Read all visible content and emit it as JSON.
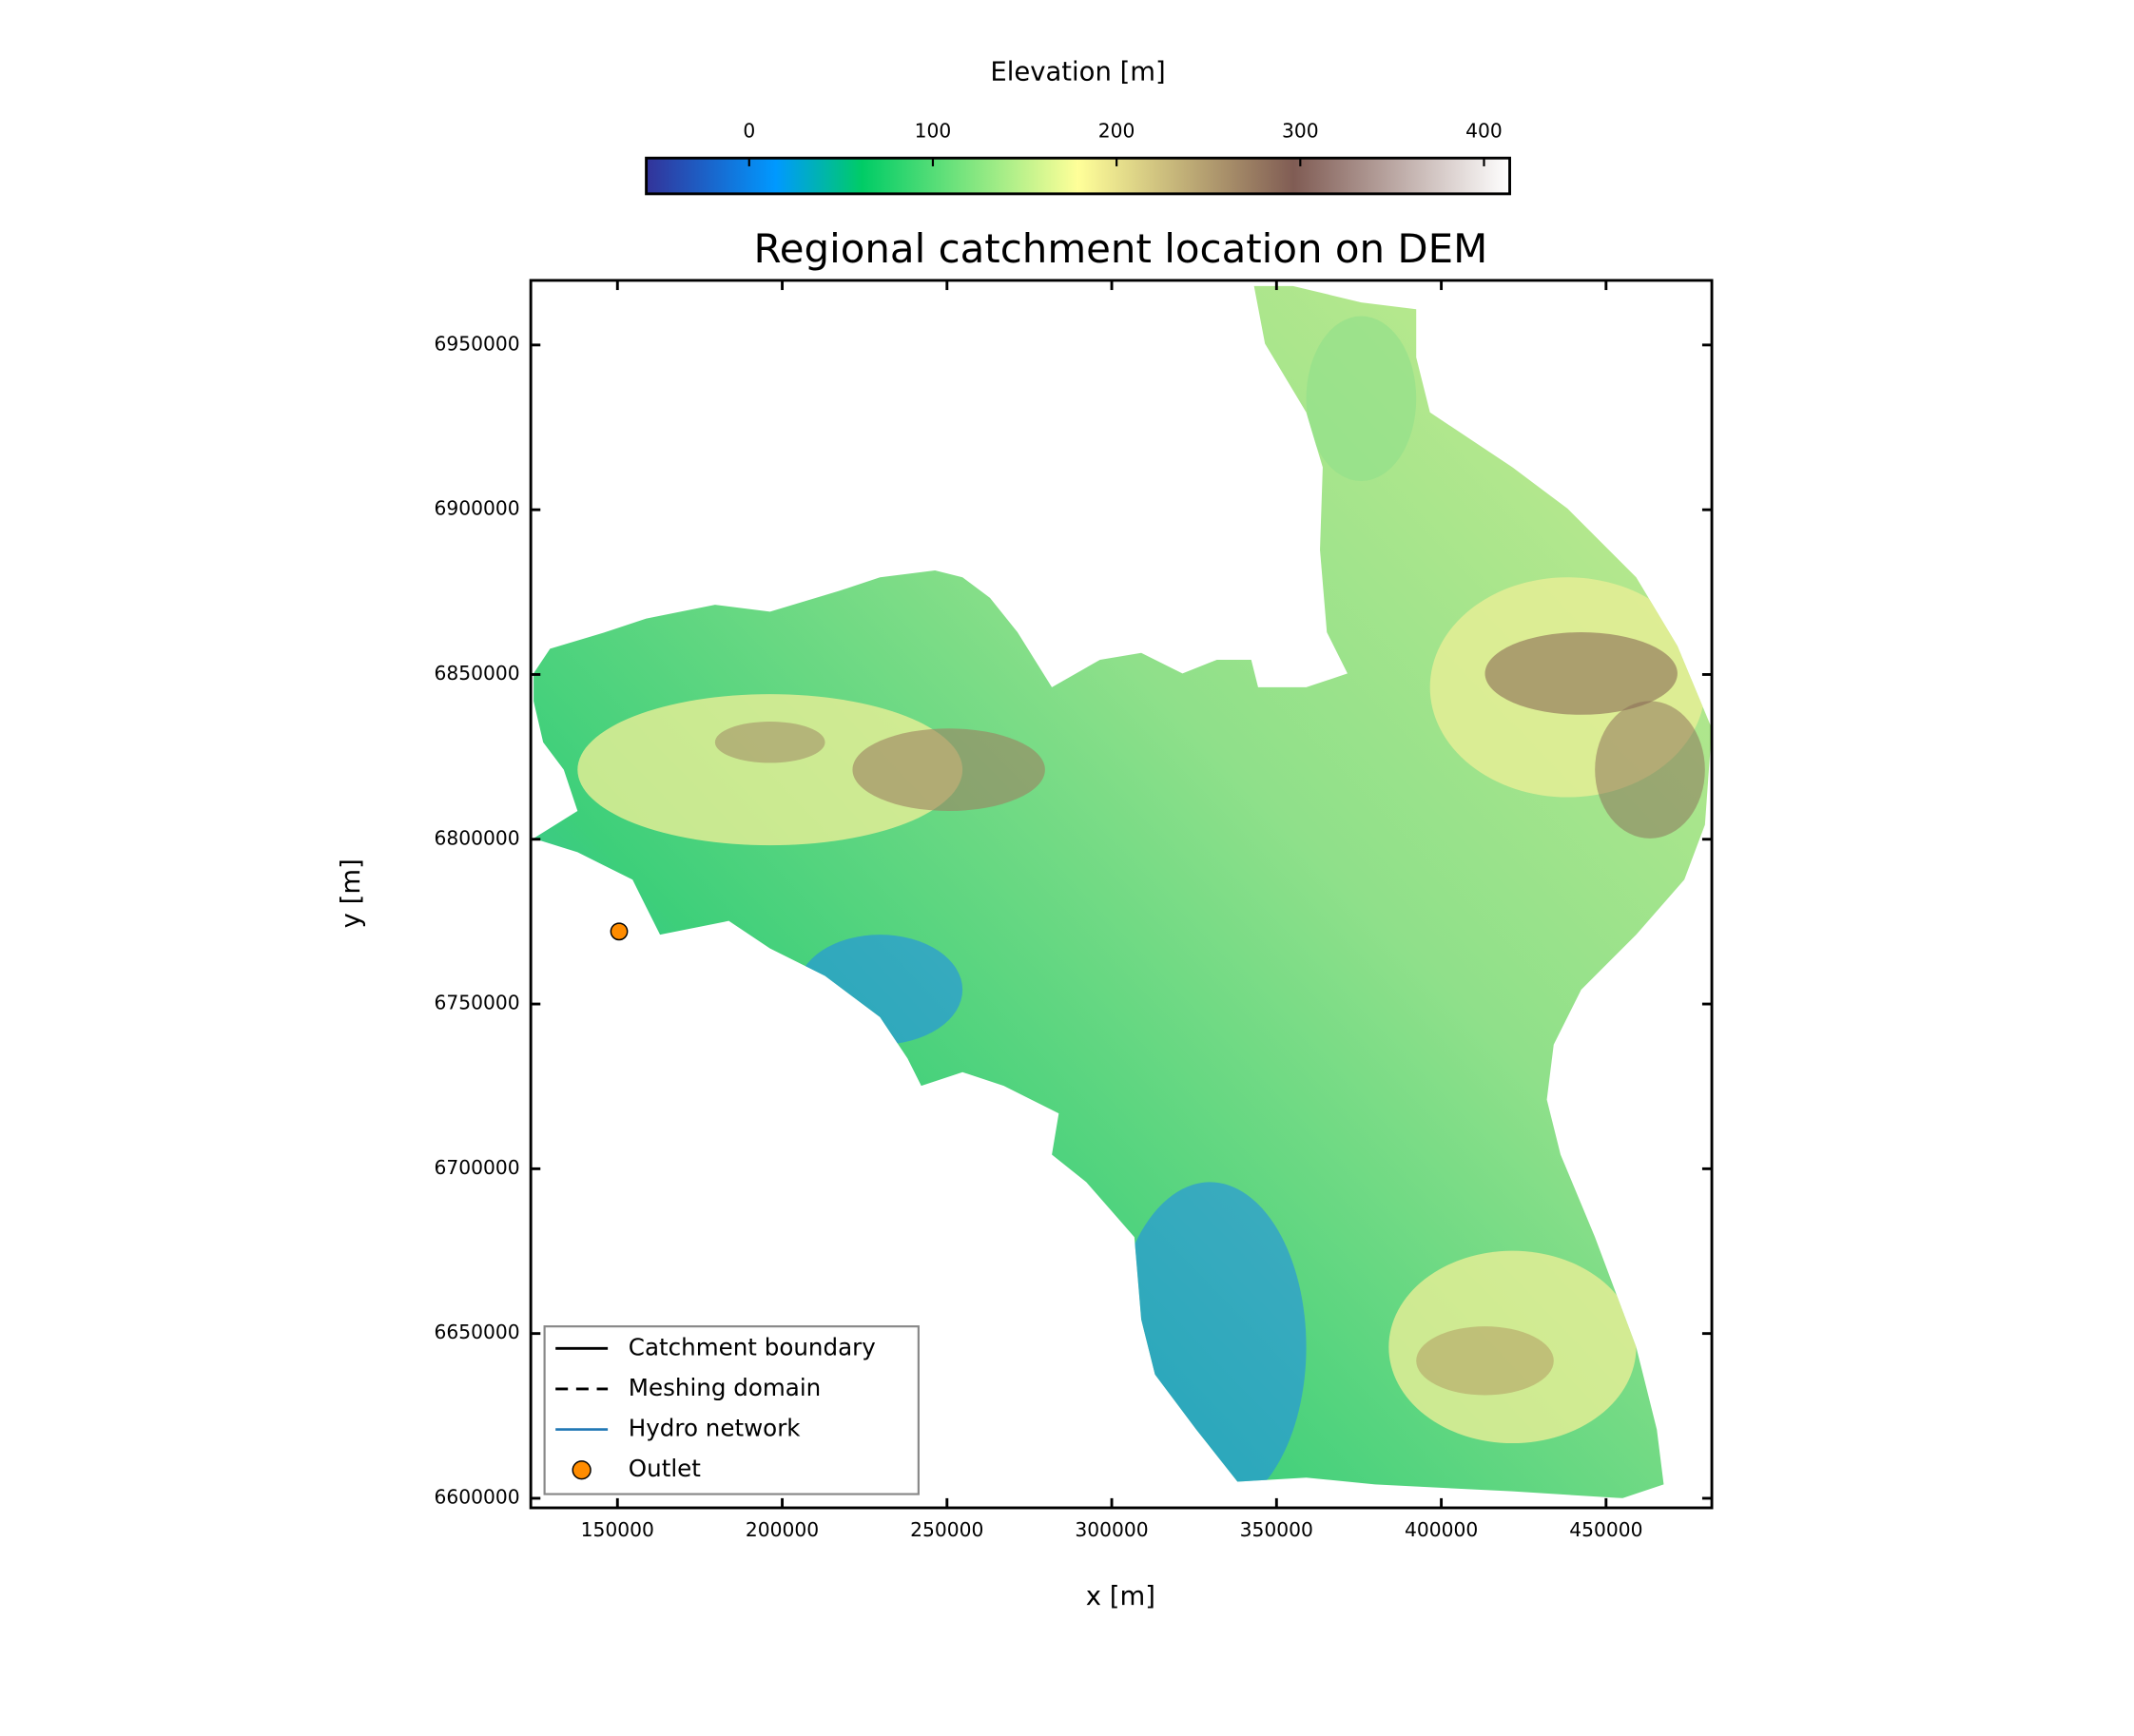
{
  "chart_data": {
    "type": "map",
    "title": "Regional catchment location on DEM",
    "xlabel": "x [m]",
    "ylabel": "y [m]",
    "xlim": [
      123700,
      482100
    ],
    "ylim": [
      6597100,
      6969600
    ],
    "xticks": [
      150000,
      200000,
      250000,
      300000,
      350000,
      400000,
      450000
    ],
    "yticks": [
      6600000,
      6650000,
      6700000,
      6750000,
      6800000,
      6850000,
      6900000,
      6950000
    ],
    "colorbar": {
      "label": "Elevation [m]",
      "clim": [
        -56,
        414
      ],
      "ticks": [
        0,
        100,
        200,
        300,
        400
      ]
    },
    "legend_loc": "lower left",
    "series": [
      {
        "name": "Catchment boundary",
        "color": "#000000",
        "linestyle": "solid"
      },
      {
        "name": "Meshing domain",
        "color": "#000000",
        "linestyle": "dashed"
      },
      {
        "name": "Hydro network",
        "color": "#1f77b4",
        "linestyle": "solid"
      },
      {
        "name": "Outlet",
        "color": "#ff8c00",
        "marker": "circle",
        "x": [
          150500
        ],
        "y": [
          6772000
        ]
      }
    ]
  }
}
